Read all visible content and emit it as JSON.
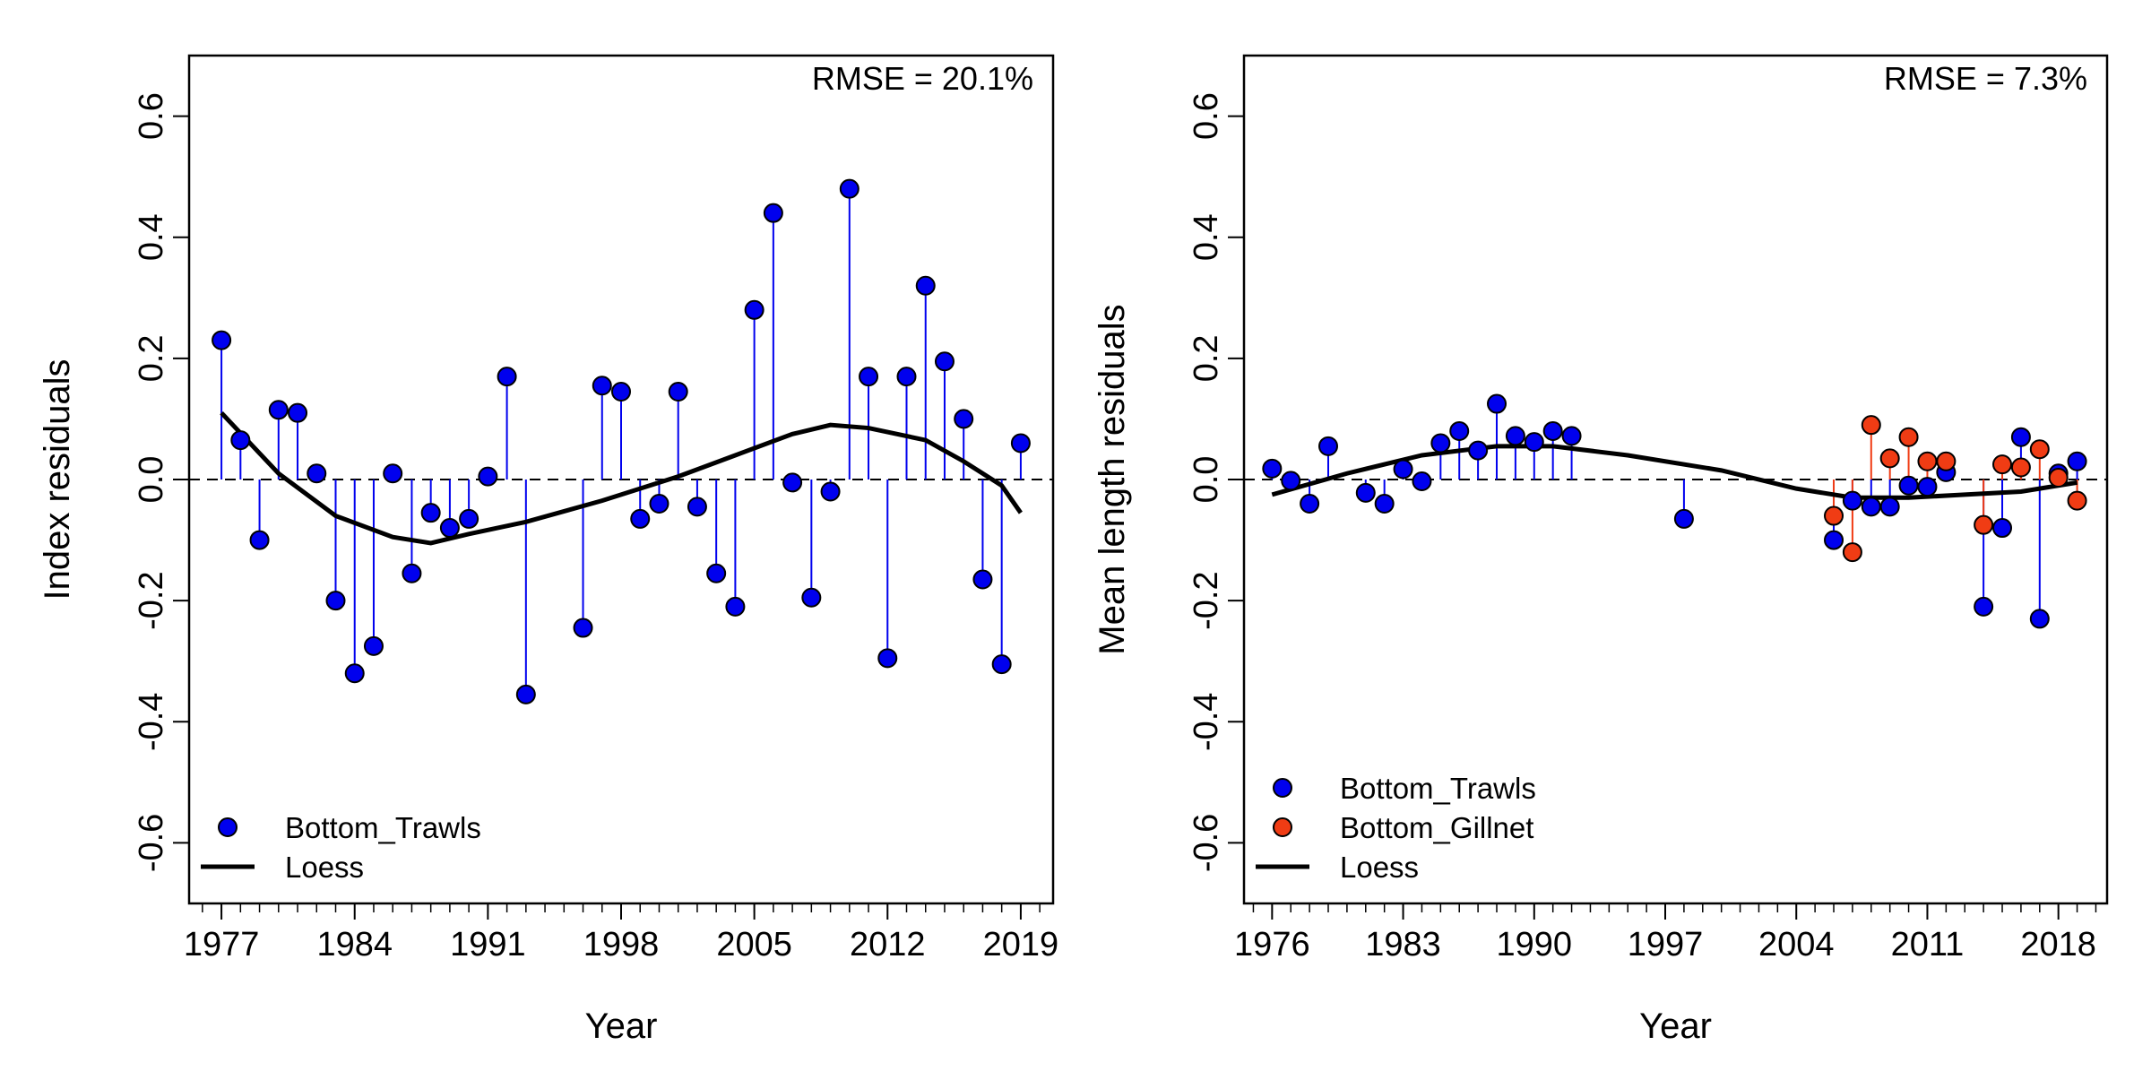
{
  "chart_data": [
    {
      "type": "scatter",
      "annotation": "RMSE = 20.1%",
      "x_label": "Year",
      "y_label": "Index residuals",
      "xlim": [
        1975.3,
        2020.7
      ],
      "ylim": [
        -0.7,
        0.7
      ],
      "xticks": [
        1977,
        1984,
        1991,
        1998,
        2005,
        2012,
        2019
      ],
      "xminor_step": 1,
      "yticks": [
        -0.6,
        -0.4,
        -0.2,
        {
          "value": 0,
          "label": "0.0"
        },
        0.2,
        0.4,
        0.6
      ],
      "refline": 0,
      "legend": "bottomleft",
      "series": [
        {
          "name": "Bottom_Trawls",
          "style": "points",
          "color": "#0000ee",
          "x": [
            1977,
            1978,
            1979,
            1980,
            1981,
            1982,
            1983,
            1984,
            1985,
            1986,
            1987,
            1988,
            1989,
            1990,
            1991,
            1992,
            1993,
            1996,
            1997,
            1998,
            1999,
            2000,
            2001,
            2002,
            2003,
            2004,
            2005,
            2006,
            2007,
            2008,
            2009,
            2010,
            2011,
            2012,
            2013,
            2014,
            2015,
            2016,
            2017,
            2018,
            2019
          ],
          "values": [
            0.23,
            0.065,
            -0.1,
            0.115,
            0.11,
            0.01,
            -0.2,
            -0.32,
            -0.275,
            0.01,
            -0.155,
            -0.055,
            -0.08,
            -0.065,
            0.005,
            0.17,
            -0.355,
            -0.245,
            0.155,
            0.145,
            -0.065,
            -0.04,
            0.145,
            -0.045,
            -0.155,
            -0.21,
            0.28,
            0.44,
            -0.005,
            -0.195,
            -0.02,
            0.48,
            0.17,
            -0.295,
            0.17,
            0.32,
            0.195,
            0.1,
            -0.165,
            -0.305,
            0.06
          ]
        },
        {
          "name": "Loess",
          "style": "line",
          "color": "#000000",
          "x": [
            1977,
            1980,
            1983,
            1986,
            1988,
            1990,
            1993,
            1997,
            2001,
            2004,
            2007,
            2009,
            2011,
            2014,
            2016,
            2018,
            2019
          ],
          "values": [
            0.11,
            0.01,
            -0.06,
            -0.095,
            -0.105,
            -0.09,
            -0.07,
            -0.035,
            0.005,
            0.04,
            0.075,
            0.09,
            0.085,
            0.065,
            0.03,
            -0.01,
            -0.055
          ]
        }
      ]
    },
    {
      "type": "scatter",
      "annotation": "RMSE = 7.3%",
      "x_label": "Year",
      "y_label": "Mean length residuals",
      "xlim": [
        1974.5,
        2020.6
      ],
      "ylim": [
        -0.7,
        0.7
      ],
      "xticks": [
        1976,
        1983,
        1990,
        1997,
        2004,
        2011,
        2018
      ],
      "xminor_step": 1,
      "yticks": [
        -0.6,
        -0.4,
        -0.2,
        {
          "value": 0,
          "label": "0.0"
        },
        0.2,
        0.4,
        0.6
      ],
      "refline": 0,
      "legend": "bottomleft",
      "series": [
        {
          "name": "Bottom_Trawls",
          "style": "points",
          "color": "#0000ee",
          "x": [
            1976,
            1977,
            1978,
            1979,
            1981,
            1982,
            1983,
            1984,
            1985,
            1986,
            1987,
            1988,
            1989,
            1990,
            1991,
            1992,
            1998,
            2006,
            2007,
            2008,
            2009,
            2010,
            2011,
            2012,
            2014,
            2015,
            2016,
            2017,
            2018,
            2019
          ],
          "values": [
            0.018,
            -0.002,
            -0.04,
            0.055,
            -0.022,
            -0.04,
            0.017,
            -0.003,
            0.06,
            0.08,
            0.048,
            0.125,
            0.072,
            0.062,
            0.08,
            0.072,
            -0.065,
            -0.1,
            -0.035,
            -0.045,
            -0.045,
            -0.01,
            -0.012,
            0.012,
            -0.21,
            -0.08,
            0.07,
            -0.23,
            0.01,
            0.03
          ]
        },
        {
          "name": "Bottom_Gillnet",
          "style": "points",
          "color": "#f03c14",
          "x": [
            2006,
            2007,
            2008,
            2009,
            2010,
            2011,
            2012,
            2014,
            2015,
            2016,
            2017,
            2018,
            2019
          ],
          "values": [
            -0.06,
            -0.12,
            0.09,
            0.035,
            0.07,
            0.03,
            0.03,
            -0.075,
            0.025,
            0.02,
            0.05,
            0.003,
            -0.035
          ]
        },
        {
          "name": "Loess",
          "style": "line",
          "color": "#000000",
          "x": [
            1976,
            1980,
            1984,
            1988,
            1991,
            1995,
            2000,
            2004,
            2007,
            2010,
            2013,
            2016,
            2019
          ],
          "values": [
            -0.025,
            0.01,
            0.04,
            0.055,
            0.055,
            0.04,
            0.015,
            -0.015,
            -0.03,
            -0.03,
            -0.025,
            -0.02,
            -0.005
          ]
        }
      ]
    }
  ]
}
